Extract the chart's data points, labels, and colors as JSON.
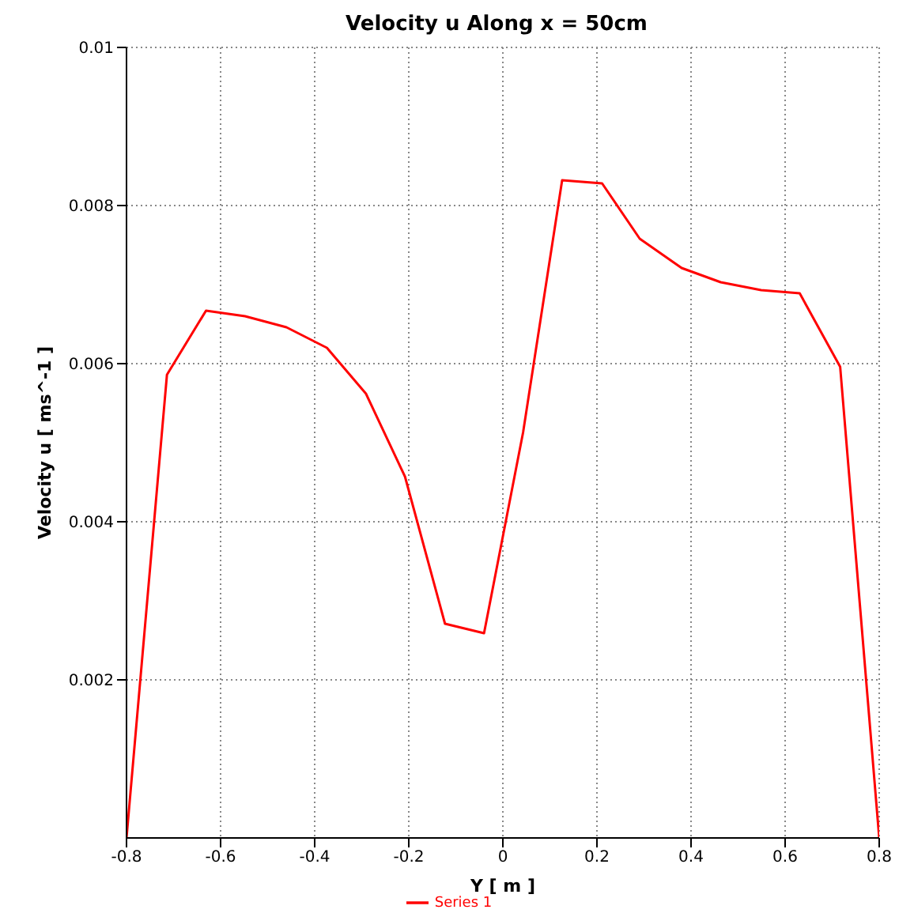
{
  "chart_data": {
    "type": "line",
    "title": "Velocity u Along x = 50cm",
    "xlabel": "Y [ m ]",
    "ylabel": "Velocity u [ ms^-1 ]",
    "x": [
      -0.8,
      -0.714,
      -0.631,
      -0.548,
      -0.46,
      -0.374,
      -0.291,
      -0.208,
      -0.123,
      -0.04,
      0.043,
      0.126,
      0.211,
      0.291,
      0.38,
      0.463,
      0.549,
      0.631,
      0.717,
      0.8
    ],
    "series": [
      {
        "name": "Series 1",
        "color": "#ff0000",
        "values": [
          0,
          0.00586,
          0.00667,
          0.0066,
          0.00646,
          0.0062,
          0.00562,
          0.00457,
          0.00271,
          0.00259,
          0.00513,
          0.00832,
          0.00828,
          0.00758,
          0.00721,
          0.00703,
          0.00693,
          0.00689,
          0.00596,
          0
        ]
      }
    ],
    "xlim": [
      -0.8,
      0.8
    ],
    "xticks": [
      -0.8,
      -0.6,
      -0.4,
      -0.2,
      0,
      0.2,
      0.4,
      0.6,
      0.8
    ],
    "ylim": [
      0,
      0.01
    ],
    "yticks": [
      0.002,
      0.004,
      0.006,
      0.008,
      0.01
    ],
    "grid": true,
    "legend": "bottom",
    "marker": "none",
    "line_style": "solid"
  }
}
